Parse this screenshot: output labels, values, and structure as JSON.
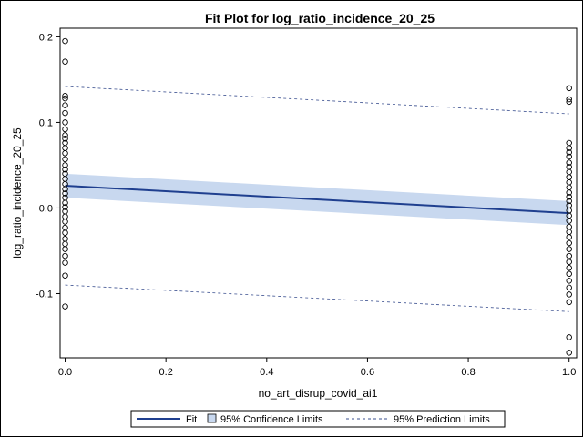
{
  "chart_data": {
    "type": "scatter",
    "title": "Fit Plot for log_ratio_incidence_20_25",
    "xlabel": "no_art_disrup_covid_ai1",
    "ylabel": "log_ratio_incidence_20_25",
    "xlim": [
      -0.01,
      1.015
    ],
    "ylim": [
      -0.175,
      0.21
    ],
    "x_ticks": [
      0.0,
      0.2,
      0.4,
      0.6,
      0.8,
      1.0
    ],
    "x_tick_labels": [
      "0.0",
      "0.2",
      "0.4",
      "0.6",
      "0.8",
      "1.0"
    ],
    "y_ticks": [
      -0.1,
      0.0,
      0.1,
      0.2
    ],
    "y_tick_labels": [
      "-0.1",
      "0.0",
      "0.1",
      "0.2"
    ],
    "grid": false,
    "legend_placement": "bottom",
    "fit": {
      "name": "Fit",
      "x": [
        0.0,
        1.0
      ],
      "y": [
        0.026,
        -0.006
      ],
      "color": "#1f3f8f"
    },
    "confidence_limits": {
      "name": "95% Confidence Limits",
      "x": [
        0.0,
        1.0
      ],
      "lower": [
        0.012,
        -0.02
      ],
      "upper": [
        0.04,
        0.008
      ],
      "color": "#c8d8ef"
    },
    "prediction_limits": {
      "name": "95% Prediction Limits",
      "x": [
        0.0,
        1.0
      ],
      "lower": [
        -0.09,
        -0.121
      ],
      "upper": [
        0.142,
        0.11
      ],
      "color": "#3a4f8f"
    },
    "points_group_0": {
      "x": 0.0,
      "y": [
        0.195,
        0.171,
        0.131,
        0.128,
        0.12,
        0.111,
        0.1,
        0.092,
        0.085,
        0.081,
        0.076,
        0.07,
        0.064,
        0.057,
        0.05,
        0.045,
        0.04,
        0.034,
        0.028,
        0.022,
        0.017,
        0.012,
        0.006,
        0.001,
        -0.004,
        -0.01,
        -0.016,
        -0.023,
        -0.029,
        -0.036,
        -0.042,
        -0.048,
        -0.056,
        -0.064,
        -0.079,
        -0.115
      ]
    },
    "points_group_1": {
      "x": 1.0,
      "y": [
        0.14,
        0.127,
        0.124,
        0.076,
        0.07,
        0.065,
        0.06,
        0.053,
        0.048,
        0.042,
        0.036,
        0.03,
        0.024,
        0.018,
        0.013,
        0.008,
        0.003,
        -0.003,
        -0.009,
        -0.015,
        -0.022,
        -0.028,
        -0.034,
        -0.041,
        -0.048,
        -0.056,
        -0.063,
        -0.07,
        -0.077,
        -0.085,
        -0.093,
        -0.101,
        -0.11,
        -0.151,
        -0.169
      ]
    }
  },
  "legend": {
    "fit_label": "Fit",
    "confidence_label": "95% Confidence Limits",
    "prediction_label": "95% Prediction Limits"
  }
}
